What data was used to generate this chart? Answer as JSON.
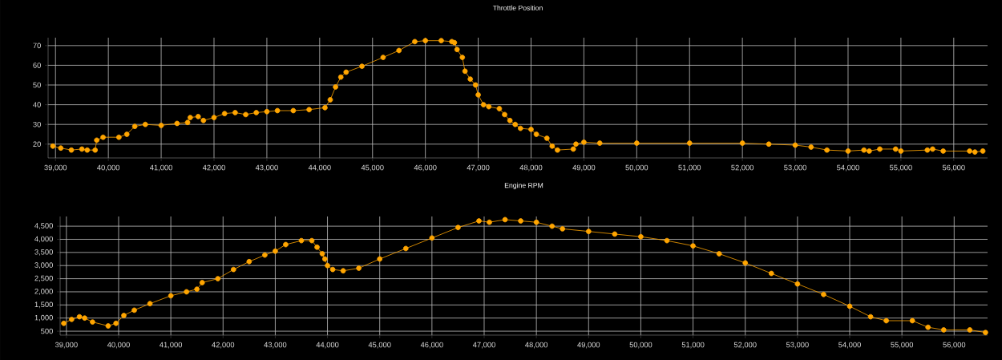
{
  "chart_data": [
    {
      "type": "line",
      "title": "Throttle Position",
      "marker": "circle",
      "line_style": "solid",
      "grid": true,
      "xlim": [
        38860,
        56640
      ],
      "ylim": [
        13,
        74
      ],
      "xticks": [
        {
          "value": 39000,
          "label": "39,000"
        },
        {
          "value": 40000,
          "label": "40,000"
        },
        {
          "value": 41000,
          "label": "41,000"
        },
        {
          "value": 42000,
          "label": "42,000"
        },
        {
          "value": 43000,
          "label": "43,000"
        },
        {
          "value": 44000,
          "label": "44,000"
        },
        {
          "value": 45000,
          "label": "45,000"
        },
        {
          "value": 46000,
          "label": "46,000"
        },
        {
          "value": 47000,
          "label": "47,000"
        },
        {
          "value": 48000,
          "label": "48,000"
        },
        {
          "value": 49000,
          "label": "49,000"
        },
        {
          "value": 50000,
          "label": "50,000"
        },
        {
          "value": 51000,
          "label": "51,000"
        },
        {
          "value": 52000,
          "label": "52,000"
        },
        {
          "value": 53000,
          "label": "53,000"
        },
        {
          "value": 54000,
          "label": "54,000"
        },
        {
          "value": 55000,
          "label": "55,000"
        },
        {
          "value": 56000,
          "label": "56,000"
        }
      ],
      "yticks": [
        20,
        30,
        40,
        50,
        60,
        70
      ],
      "series": [
        {
          "color": "#ffa500",
          "x": [
            38950,
            39100,
            39300,
            39500,
            39600,
            39750,
            39780,
            39900,
            40200,
            40350,
            40500,
            40700,
            41000,
            41300,
            41500,
            41550,
            41700,
            41800,
            42000,
            42200,
            42400,
            42600,
            42800,
            43000,
            43200,
            43500,
            43800,
            44100,
            44200,
            44300,
            44400,
            44500,
            44800,
            45200,
            45500,
            45800,
            46000,
            46300,
            46500,
            46550,
            46600,
            46700,
            46750,
            46850,
            46950,
            47000,
            47100,
            47200,
            47400,
            47500,
            47600,
            47700,
            47800,
            48000,
            48100,
            48300,
            48400,
            48500,
            48800,
            48850,
            49000,
            49300,
            50000,
            51000,
            52000,
            52500,
            53000,
            53300,
            53600,
            54000,
            54300,
            54400,
            54600,
            54900,
            55000,
            55500,
            55600,
            55800,
            56300,
            56400,
            56550
          ],
          "values": [
            19,
            18,
            17,
            17.5,
            17,
            17,
            22,
            23.5,
            23.5,
            25,
            29,
            30,
            29.5,
            30.5,
            31,
            33.5,
            34,
            32,
            33.5,
            35.5,
            36,
            35,
            36,
            36.5,
            37,
            37,
            37.5,
            38.5,
            42.5,
            49,
            54,
            56.5,
            59.5,
            64,
            67.5,
            72,
            72.5,
            72.5,
            72,
            71.5,
            68,
            64,
            57,
            53,
            50,
            45,
            40,
            39,
            38,
            35,
            32,
            30,
            28,
            27.5,
            25,
            23,
            19,
            17,
            17.5,
            20,
            21,
            20.5,
            20.5,
            20.5,
            20.5,
            20,
            19.5,
            18.5,
            17,
            16.5,
            17,
            16.5,
            17.5,
            17.5,
            16.5,
            17,
            17.5,
            16.5,
            16.5,
            16,
            16.5
          ]
        }
      ]
    },
    {
      "type": "line",
      "title": "Engine RPM",
      "marker": "circle",
      "line_style": "solid",
      "grid": true,
      "xlim": [
        38880,
        56640
      ],
      "ylim": [
        350,
        4870
      ],
      "xticks": [
        {
          "value": 39000,
          "label": "39,000"
        },
        {
          "value": 40000,
          "label": "40,000"
        },
        {
          "value": 41000,
          "label": "41,000"
        },
        {
          "value": 42000,
          "label": "42,000"
        },
        {
          "value": 43000,
          "label": "43,000"
        },
        {
          "value": 44000,
          "label": "44,000"
        },
        {
          "value": 45000,
          "label": "45,000"
        },
        {
          "value": 46000,
          "label": "46,000"
        },
        {
          "value": 47000,
          "label": "47,000"
        },
        {
          "value": 48000,
          "label": "48,000"
        },
        {
          "value": 49000,
          "label": "49,000"
        },
        {
          "value": 50000,
          "label": "50,000"
        },
        {
          "value": 51000,
          "label": "51,000"
        },
        {
          "value": 52000,
          "label": "52,000"
        },
        {
          "value": 53000,
          "label": "53,000"
        },
        {
          "value": 54000,
          "label": "54,000"
        },
        {
          "value": 55000,
          "label": "55,000"
        },
        {
          "value": 56000,
          "label": "56,000"
        }
      ],
      "yticks": [
        500,
        {
          "value": 1000,
          "label": "1,000"
        },
        {
          "value": 1500,
          "label": "1,500"
        },
        {
          "value": 2000,
          "label": "2,000"
        },
        {
          "value": 2500,
          "label": "2,500"
        },
        {
          "value": 3000,
          "label": "3,000"
        },
        {
          "value": 3500,
          "label": "3,500"
        },
        {
          "value": 4000,
          "label": "4,000"
        },
        {
          "value": 4500,
          "label": "4,500"
        }
      ],
      "series": [
        {
          "color": "#ffa500",
          "x": [
            38950,
            39100,
            39250,
            39350,
            39500,
            39800,
            39950,
            40100,
            40300,
            40600,
            41000,
            41300,
            41500,
            41600,
            41900,
            42200,
            42500,
            42800,
            43000,
            43200,
            43500,
            43700,
            43800,
            43900,
            43950,
            44000,
            44100,
            44300,
            44600,
            45000,
            45500,
            46000,
            46500,
            46900,
            47100,
            47400,
            47700,
            48000,
            48300,
            48500,
            49000,
            49500,
            50000,
            50500,
            51000,
            51500,
            52000,
            52500,
            53000,
            53500,
            54000,
            54400,
            54700,
            55200,
            55500,
            55800,
            56300,
            56600
          ],
          "values": [
            800,
            950,
            1050,
            1000,
            850,
            700,
            800,
            1100,
            1300,
            1550,
            1850,
            2000,
            2100,
            2350,
            2500,
            2850,
            3150,
            3400,
            3550,
            3800,
            3950,
            3950,
            3700,
            3450,
            3250,
            3000,
            2850,
            2800,
            2900,
            3250,
            3650,
            4050,
            4450,
            4700,
            4650,
            4750,
            4700,
            4650,
            4500,
            4400,
            4300,
            4200,
            4100,
            3950,
            3750,
            3450,
            3100,
            2700,
            2300,
            1900,
            1450,
            1050,
            900,
            900,
            650,
            550,
            550,
            450
          ]
        }
      ]
    }
  ]
}
